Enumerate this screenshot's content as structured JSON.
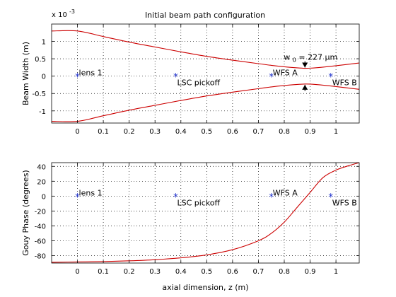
{
  "chart_data": [
    {
      "type": "line",
      "title": "Initial beam path configuration",
      "xlabel": "",
      "ylabel": "Beam Width (m)",
      "xlim": [
        -0.1,
        1.09
      ],
      "ylim": [
        -1.35,
        1.5
      ],
      "x_ticks": [
        0,
        0.1,
        0.2,
        0.3,
        0.4,
        0.5,
        0.6,
        0.7,
        0.8,
        0.9,
        1
      ],
      "x_tick_labels": [
        "0",
        "0.1",
        "0.2",
        "0.3",
        "0.4",
        "0.5",
        "0.6",
        "0.7",
        "0.8",
        "0.9",
        "1"
      ],
      "y_ticks": [
        -1,
        -0.5,
        0,
        0.5,
        1
      ],
      "y_tick_labels": [
        "-1",
        "-0.5",
        "0",
        "0.5",
        "1"
      ],
      "y_multiplier": {
        "base": "x 10",
        "exp": "-3"
      },
      "grid": true,
      "series": [
        {
          "color": "#cc0000",
          "x": [
            -0.1,
            0,
            0.1,
            0.2,
            0.3,
            0.4,
            0.5,
            0.6,
            0.7,
            0.75,
            0.8,
            0.85,
            0.88,
            0.9,
            0.95,
            1.0,
            1.09
          ],
          "y": [
            1.3,
            1.3,
            1.14,
            0.98,
            0.84,
            0.7,
            0.57,
            0.46,
            0.36,
            0.31,
            0.27,
            0.24,
            0.227,
            0.23,
            0.26,
            0.3,
            0.38
          ]
        },
        {
          "color": "#cc0000",
          "x": [
            -0.1,
            0,
            0.1,
            0.2,
            0.3,
            0.4,
            0.5,
            0.6,
            0.7,
            0.75,
            0.8,
            0.85,
            0.88,
            0.9,
            0.95,
            1.0,
            1.09
          ],
          "y": [
            -1.3,
            -1.3,
            -1.14,
            -0.98,
            -0.84,
            -0.7,
            -0.57,
            -0.46,
            -0.36,
            -0.31,
            -0.27,
            -0.24,
            -0.227,
            -0.23,
            -0.26,
            -0.3,
            -0.38
          ]
        }
      ],
      "markers": [
        {
          "x": 0,
          "y": 0,
          "label": "lens 1"
        },
        {
          "x": 0.38,
          "y": 0,
          "label": "LSC pickoff"
        },
        {
          "x": 0.75,
          "y": 0,
          "label": "WFS A"
        },
        {
          "x": 0.98,
          "y": 0,
          "label": "WFS B"
        }
      ],
      "annotations": [
        {
          "x": 0.88,
          "y": 0.227,
          "base": "w",
          "sub": "0",
          "rest": " = 227",
          "unit": "μm",
          "arrows": "waist"
        }
      ]
    },
    {
      "type": "line",
      "title": "",
      "xlabel": "axial dimension, z (m)",
      "ylabel": "Gouy Phase (degrees)",
      "xlim": [
        -0.1,
        1.09
      ],
      "ylim": [
        -90,
        45
      ],
      "x_ticks": [
        0,
        0.1,
        0.2,
        0.3,
        0.4,
        0.5,
        0.6,
        0.7,
        0.8,
        0.9,
        1
      ],
      "x_tick_labels": [
        "0",
        "0.1",
        "0.2",
        "0.3",
        "0.4",
        "0.5",
        "0.6",
        "0.7",
        "0.8",
        "0.9",
        "1"
      ],
      "y_ticks": [
        -80,
        -60,
        -40,
        -20,
        0,
        20,
        40
      ],
      "y_tick_labels": [
        "-80",
        "-60",
        "-40",
        "-20",
        "0",
        "20",
        "40"
      ],
      "grid": true,
      "series": [
        {
          "color": "#cc0000",
          "x": [
            -0.1,
            0,
            0.1,
            0.2,
            0.3,
            0.4,
            0.5,
            0.6,
            0.7,
            0.75,
            0.8,
            0.85,
            0.9,
            0.95,
            1.0,
            1.05,
            1.09
          ],
          "y": [
            -89,
            -88.5,
            -88,
            -87,
            -85.5,
            -83,
            -79,
            -72,
            -60,
            -50,
            -35,
            -15,
            5,
            25,
            35,
            41,
            45
          ]
        }
      ],
      "markers": [
        {
          "x": 0,
          "y": 0,
          "label": "lens 1"
        },
        {
          "x": 0.38,
          "y": 0,
          "label": "LSC pickoff"
        },
        {
          "x": 0.75,
          "y": 0,
          "label": "WFS A"
        },
        {
          "x": 0.98,
          "y": 0,
          "label": "WFS B"
        }
      ]
    }
  ]
}
